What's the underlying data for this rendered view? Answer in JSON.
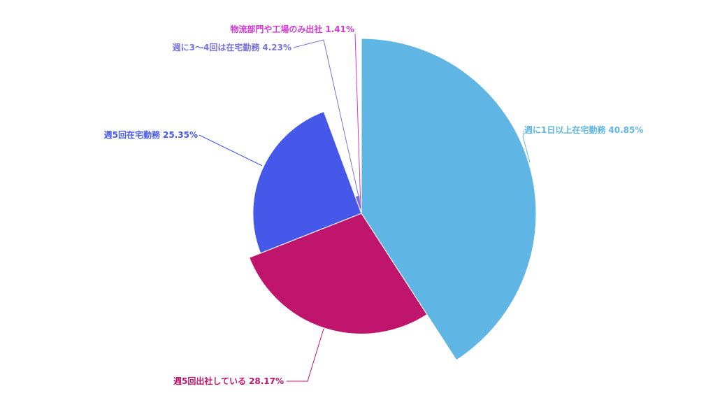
{
  "chart_data": {
    "type": "rose",
    "categories": [
      "週に1日以上在宅勤務",
      "週5回出社している",
      "週5回在宅勤務",
      "週に3〜4回は在宅勤務",
      "物流部門や工場のみ出社"
    ],
    "values": [
      40.85,
      28.17,
      25.35,
      4.23,
      1.41
    ],
    "value_labels": [
      "40.85%",
      "28.17%",
      "25.35%",
      "4.23%",
      "1.41%"
    ],
    "colors": [
      "#5fb6e4",
      "#c0156c",
      "#4558ea",
      "#7a72dc",
      "#d23ad6"
    ]
  }
}
